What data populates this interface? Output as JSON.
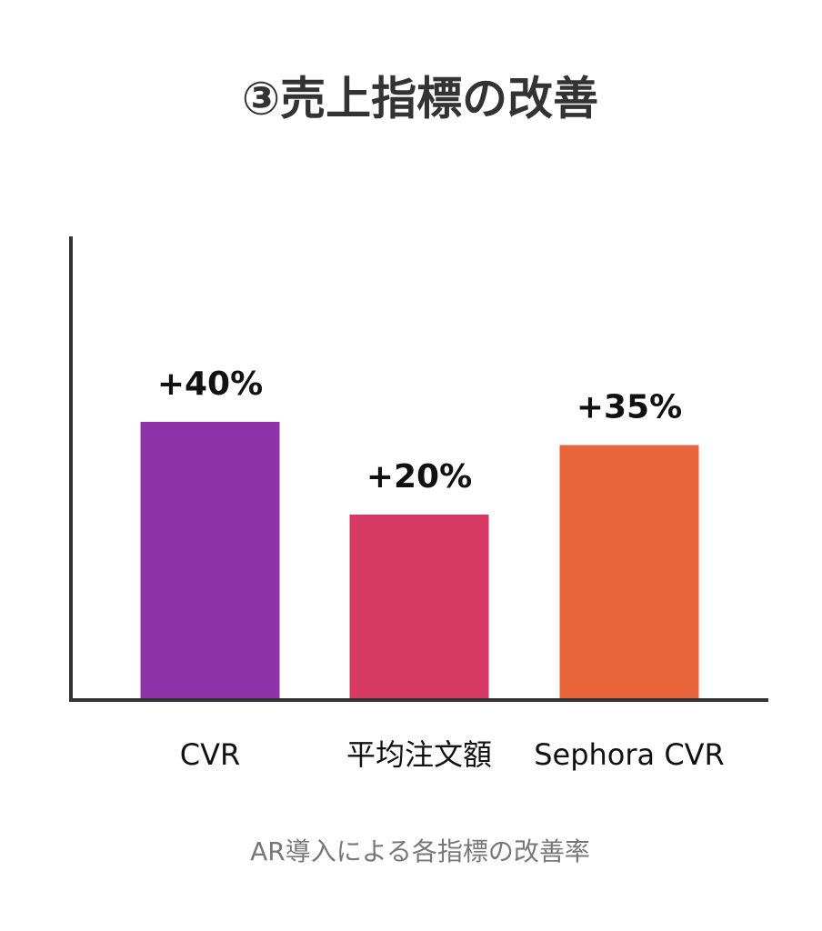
{
  "chart_data": {
    "type": "bar",
    "title": "③売上指標の改善",
    "categories": [
      "CVR",
      "平均注文額",
      "Sephora CVR"
    ],
    "values": [
      40,
      20,
      35
    ],
    "value_labels": [
      "+40%",
      "+20%",
      "+35%"
    ],
    "colors": [
      "#8e33a8",
      "#d63a64",
      "#e9643a"
    ],
    "ylim": [
      -20,
      80
    ],
    "caption": "AR導入による各指標の改善率"
  }
}
